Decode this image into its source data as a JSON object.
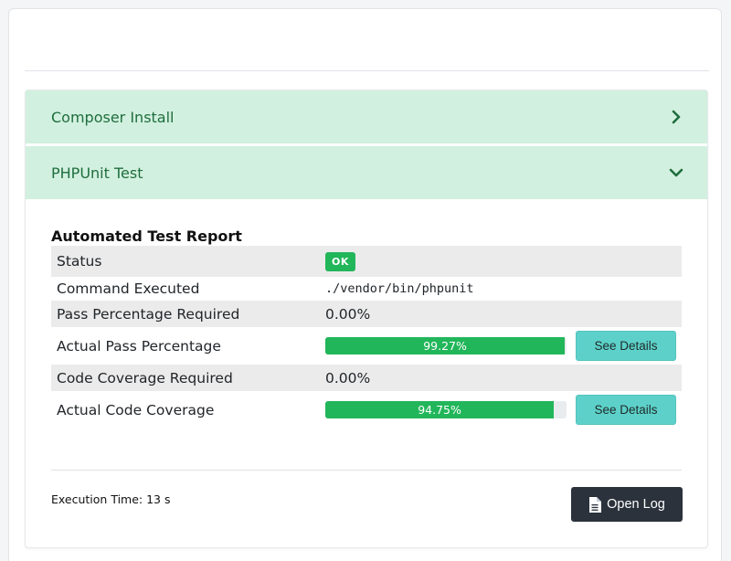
{
  "accordion": {
    "sections": [
      {
        "label": "Composer Install",
        "icon": "chevron-right-icon",
        "expanded": false
      },
      {
        "label": "PHPUnit Test",
        "icon": "chevron-down-icon",
        "expanded": true
      }
    ]
  },
  "report": {
    "title": "Automated Test Report",
    "status_label": "Status",
    "status_value": "OK",
    "command_label": "Command Executed",
    "command_value": "./vendor/bin/phpunit",
    "pass_required_label": "Pass Percentage Required",
    "pass_required_value": "0.00%",
    "actual_pass_label": "Actual Pass Percentage",
    "actual_pass_text": "99.27%",
    "actual_pass_fraction": 0.9927,
    "coverage_required_label": "Code Coverage Required",
    "coverage_required_value": "0.00%",
    "actual_coverage_label": "Actual Code Coverage",
    "actual_coverage_text": "94.75%",
    "actual_coverage_fraction": 0.9475,
    "see_details_label": "See Details"
  },
  "footer": {
    "execution_time": "Execution Time: 13 s",
    "open_log_label": "Open Log",
    "open_log_icon": "document-icon"
  },
  "colors": {
    "accordion_bg": "#d2f0df",
    "accordion_text": "#1f6e3e",
    "success": "#22b65a",
    "details_button": "#5dd1c9",
    "dark_button": "#2b323c"
  }
}
